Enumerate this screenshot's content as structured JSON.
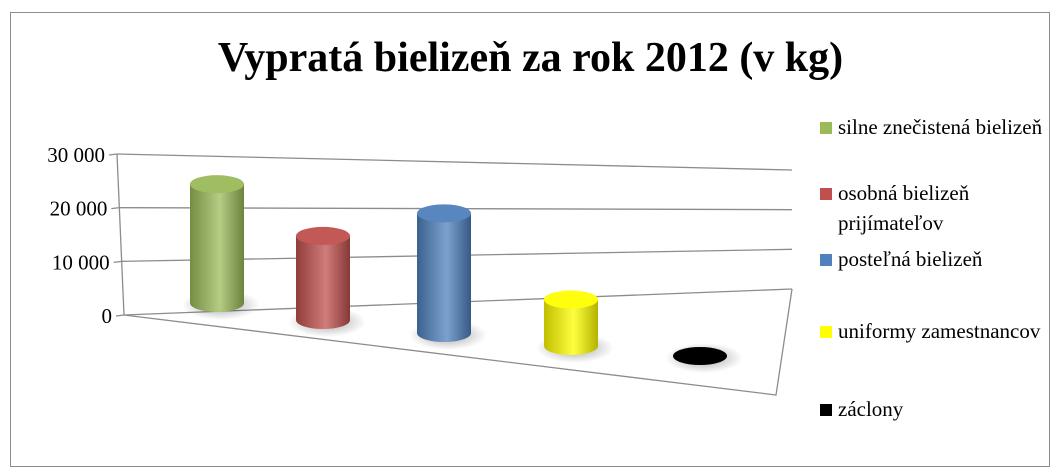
{
  "chart_data": {
    "type": "bar",
    "title": "Vypratá bielizeň za rok 2012 (v kg)",
    "yticks": [
      "0",
      "10 000",
      "20 000",
      "30 000"
    ],
    "ylim": [
      0,
      30000
    ],
    "grid": true,
    "legend_position": "right",
    "series": [
      {
        "name": "silne znečistená bielizeň",
        "value": 23000,
        "color": "#9bbb59"
      },
      {
        "name": "osobná bielizeň prijímateľov",
        "value": 17000,
        "color": "#c0504d"
      },
      {
        "name": "posteľná bielizeň",
        "value": 25500,
        "color": "#4f81bd"
      },
      {
        "name": "uniformy zamestnancov",
        "value": 10500,
        "color": "#ffff00"
      },
      {
        "name": "záclony",
        "value": 0,
        "color": "#000000"
      }
    ]
  }
}
